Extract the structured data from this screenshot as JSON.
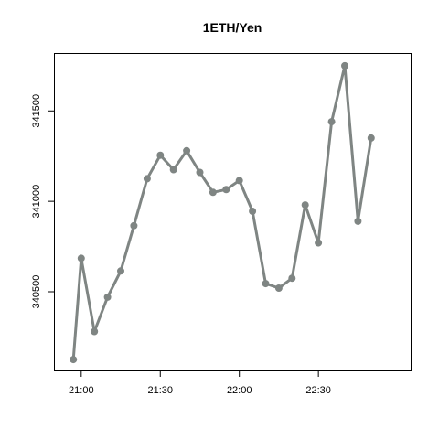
{
  "chart_data": {
    "type": "line",
    "title": "1ETH/Yen",
    "xlabel": "",
    "ylabel": "",
    "x": [
      "20:57",
      "21:00",
      "21:05",
      "21:10",
      "21:15",
      "21:20",
      "21:25",
      "21:30",
      "21:35",
      "21:40",
      "21:45",
      "21:50",
      "21:55",
      "22:00",
      "22:05",
      "22:10",
      "22:15",
      "22:20",
      "22:25",
      "22:30",
      "22:35",
      "22:40",
      "22:45",
      "22:50"
    ],
    "x_ticks": [
      "21:00",
      "21:30",
      "22:00",
      "22:30"
    ],
    "y_ticks": [
      340500,
      341000,
      341500
    ],
    "xlim": [
      "20:50",
      "23:05"
    ],
    "ylim": [
      340065,
      341815
    ],
    "series": [
      {
        "values": [
          340125,
          340685,
          340280,
          340470,
          340615,
          340865,
          341125,
          341255,
          341175,
          341280,
          341160,
          341050,
          341065,
          341115,
          340945,
          340545,
          340520,
          340575,
          340980,
          340770,
          341440,
          341750,
          340890,
          341350
        ],
        "color": "#7f8583"
      }
    ],
    "grid": false,
    "legend": "none"
  }
}
